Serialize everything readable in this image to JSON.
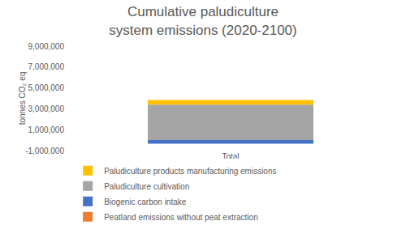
{
  "chart_data": {
    "type": "bar",
    "title": "Cumulative paludiculture\nsystem emissions (2020-2100)",
    "y_label": "tonnes CO₂ eq",
    "categories": [
      "Total"
    ],
    "series": [
      {
        "name": "Peatland emissions without peat extraction",
        "color": "#ED7D31",
        "values": [
          0
        ]
      },
      {
        "name": "Biogenic carbon intake",
        "color": "#4472C4",
        "values": [
          -350000
        ]
      },
      {
        "name": "Paludiculture cultivation",
        "color": "#A5A5A5",
        "values": [
          3400000
        ]
      },
      {
        "name": "Paludiculture products manufacturing emissions",
        "color": "#FFC000",
        "values": [
          450000
        ]
      }
    ],
    "ylim": [
      -1000000,
      9000000
    ],
    "yticks": [
      {
        "value": -1000000,
        "label": "-1,000,000"
      },
      {
        "value": 1000000,
        "label": "1,000,000"
      },
      {
        "value": 3000000,
        "label": "3,000,000"
      },
      {
        "value": 5000000,
        "label": "5,000,000"
      },
      {
        "value": 7000000,
        "label": "7,000,000"
      },
      {
        "value": 9000000,
        "label": "9,000,000"
      }
    ],
    "stacked": true,
    "grid": false,
    "legend": "bottom"
  }
}
